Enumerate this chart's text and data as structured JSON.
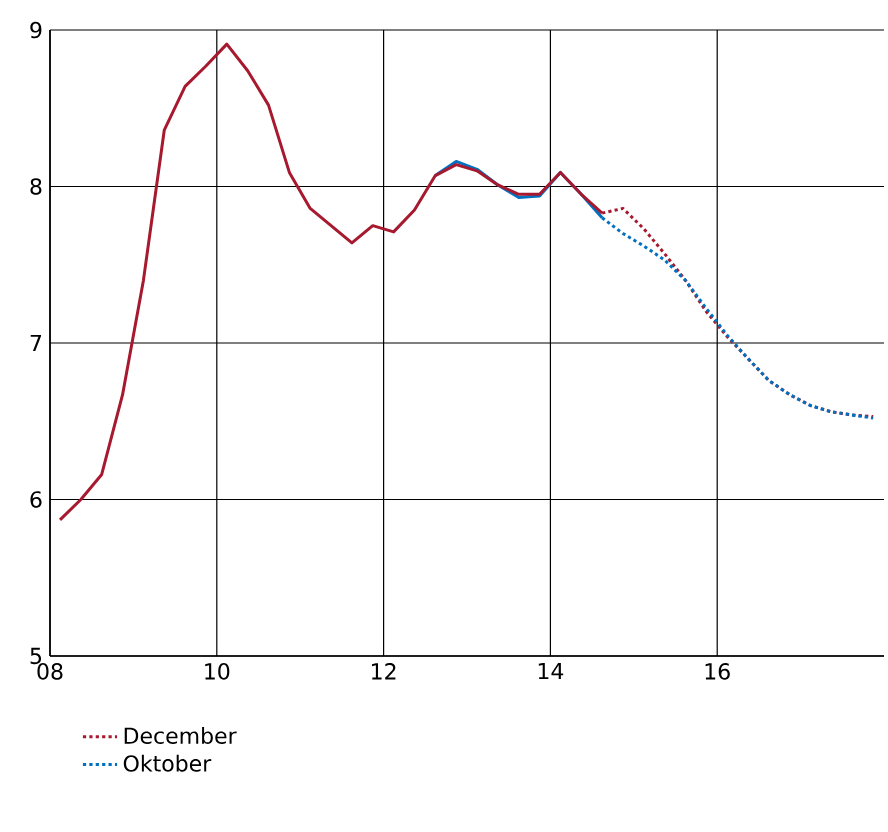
{
  "chart_data": {
    "type": "line",
    "xlim": [
      8,
      18
    ],
    "ylim": [
      5,
      9
    ],
    "xticks": [
      {
        "value": 8,
        "label": "08"
      },
      {
        "value": 10,
        "label": "10"
      },
      {
        "value": 12,
        "label": "12"
      },
      {
        "value": 14,
        "label": "14"
      },
      {
        "value": 16,
        "label": "16"
      }
    ],
    "yticks": [
      5,
      6,
      7,
      8,
      9
    ],
    "grid": true,
    "legend": "bottom",
    "series": [
      {
        "color": "#0070c0",
        "line_style": "solid",
        "x": [
          12.62,
          12.87,
          13.12,
          13.37,
          13.62,
          13.87,
          14.12,
          14.37,
          14.62
        ],
        "values": [
          8.07,
          8.16,
          8.11,
          8.01,
          7.93,
          7.94,
          8.09,
          7.95,
          7.8
        ]
      },
      {
        "color": "#a6192e",
        "line_style": "solid",
        "x": [
          8.12,
          8.37,
          8.62,
          8.87,
          9.12,
          9.37,
          9.62,
          9.87,
          10.12,
          10.37,
          10.62,
          10.87,
          11.12,
          11.37,
          11.62,
          11.87,
          12.12,
          12.37,
          12.62,
          12.87,
          13.12,
          13.37,
          13.62,
          13.87,
          14.12,
          14.37,
          14.62
        ],
        "values": [
          5.87,
          6.0,
          6.16,
          6.67,
          7.4,
          8.36,
          8.64,
          8.77,
          8.91,
          8.74,
          8.52,
          8.09,
          7.86,
          7.75,
          7.64,
          7.75,
          7.71,
          7.85,
          8.07,
          8.14,
          8.1,
          8.01,
          7.95,
          7.95,
          8.09,
          7.95,
          7.83
        ]
      },
      {
        "name": "December",
        "color": "#a6192e",
        "line_style": "dotted",
        "x": [
          14.62,
          14.87,
          15.12,
          15.37,
          15.62,
          15.87,
          16.12,
          16.37,
          16.62,
          16.87,
          17.12,
          17.37,
          17.62,
          17.87
        ],
        "values": [
          7.83,
          7.86,
          7.73,
          7.57,
          7.4,
          7.2,
          7.04,
          6.9,
          6.76,
          6.67,
          6.6,
          6.56,
          6.54,
          6.53
        ]
      },
      {
        "name": "Oktober",
        "color": "#0070c0",
        "line_style": "dotted",
        "x": [
          14.62,
          14.87,
          15.12,
          15.37,
          15.62,
          15.87,
          16.12,
          16.37,
          16.62,
          16.87,
          17.12,
          17.37,
          17.62,
          17.87
        ],
        "values": [
          7.8,
          7.7,
          7.62,
          7.53,
          7.4,
          7.22,
          7.05,
          6.9,
          6.76,
          6.67,
          6.6,
          6.56,
          6.54,
          6.52
        ]
      }
    ]
  }
}
